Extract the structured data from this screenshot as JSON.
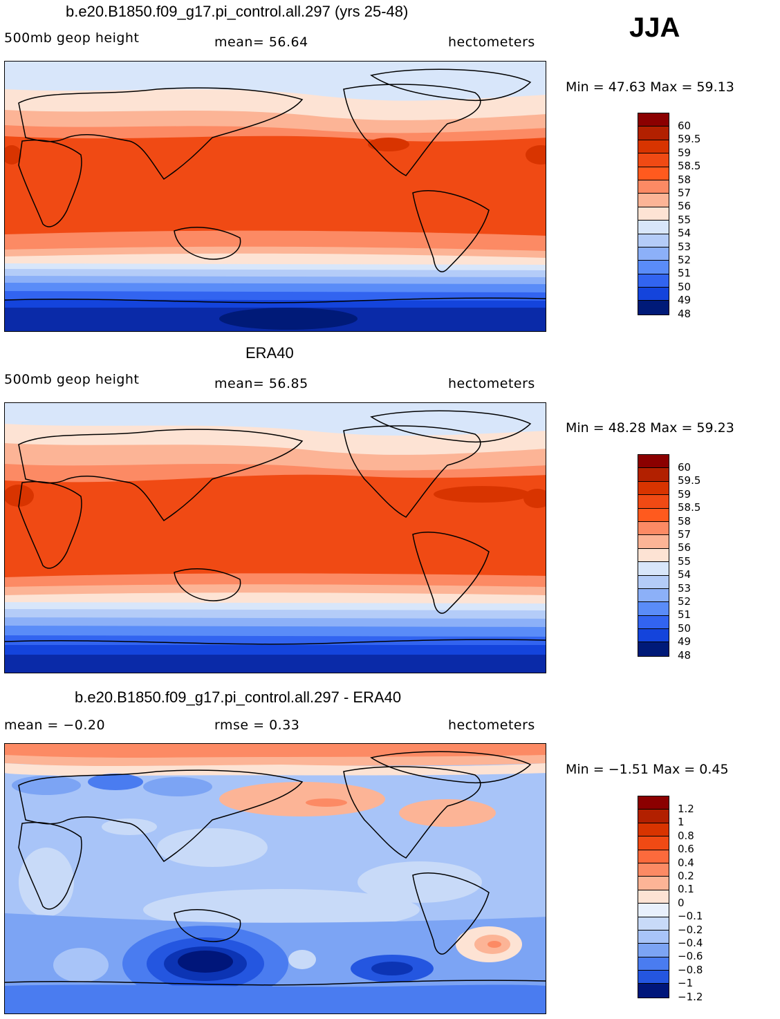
{
  "season": "JJA",
  "panels": [
    {
      "title": "b.e20.B1850.f09_g17.pi_control.all.297 (yrs 25-48)",
      "left_label": "500mb geop height",
      "mid_label": "mean=   56.64",
      "right_label": "hectometers",
      "minmax": "Min =   47.63  Max =    59.13",
      "min": 47.63,
      "max": 59.13,
      "mean": 56.64,
      "levels": [
        "60",
        "59.5",
        "59",
        "58.5",
        "58",
        "57",
        "56",
        "55",
        "54",
        "53",
        "52",
        "51",
        "50",
        "49",
        "48"
      ]
    },
    {
      "title": "ERA40",
      "left_label": "500mb geop height",
      "mid_label": "mean=   56.85",
      "right_label": "hectometers",
      "minmax": "Min =   48.28  Max =    59.23",
      "min": 48.28,
      "max": 59.23,
      "mean": 56.85,
      "levels": [
        "60",
        "59.5",
        "59",
        "58.5",
        "58",
        "57",
        "56",
        "55",
        "54",
        "53",
        "52",
        "51",
        "50",
        "49",
        "48"
      ]
    },
    {
      "title": "b.e20.B1850.f09_g17.pi_control.all.297 - ERA40",
      "left_label": "mean =   −0.20",
      "mid_label": "rmse =     0.33",
      "right_label": "hectometers",
      "minmax": "Min =   −1.51  Max =      0.45",
      "min": -1.51,
      "max": 0.45,
      "mean": -0.2,
      "rmse": 0.33,
      "levels": [
        "1.2",
        "1",
        "0.8",
        "0.6",
        "0.4",
        "0.2",
        "0.1",
        "0",
        "−0.1",
        "−0.2",
        "−0.4",
        "−0.6",
        "−0.8",
        "−1",
        "−1.2"
      ]
    }
  ],
  "colors": {
    "abs": [
      "#8b0000",
      "#b22000",
      "#d83400",
      "#f04a14",
      "#ff5a1e",
      "#fc8a64",
      "#fcb496",
      "#fde3d4",
      "#d8e6fa",
      "#b4ccf8",
      "#8cb0f8",
      "#5a8cf8",
      "#3264f0",
      "#1444dc",
      "#0a2aa8",
      "#001a78"
    ],
    "diff": [
      "#8b0000",
      "#b22000",
      "#d83400",
      "#f04a14",
      "#fc6a3c",
      "#fc8a64",
      "#fcb496",
      "#fde3d4",
      "#e8f0fc",
      "#c8daf8",
      "#a8c4f8",
      "#7ca4f4",
      "#4a7cf0",
      "#2456e0",
      "#0c34b4",
      "#00167a"
    ]
  }
}
